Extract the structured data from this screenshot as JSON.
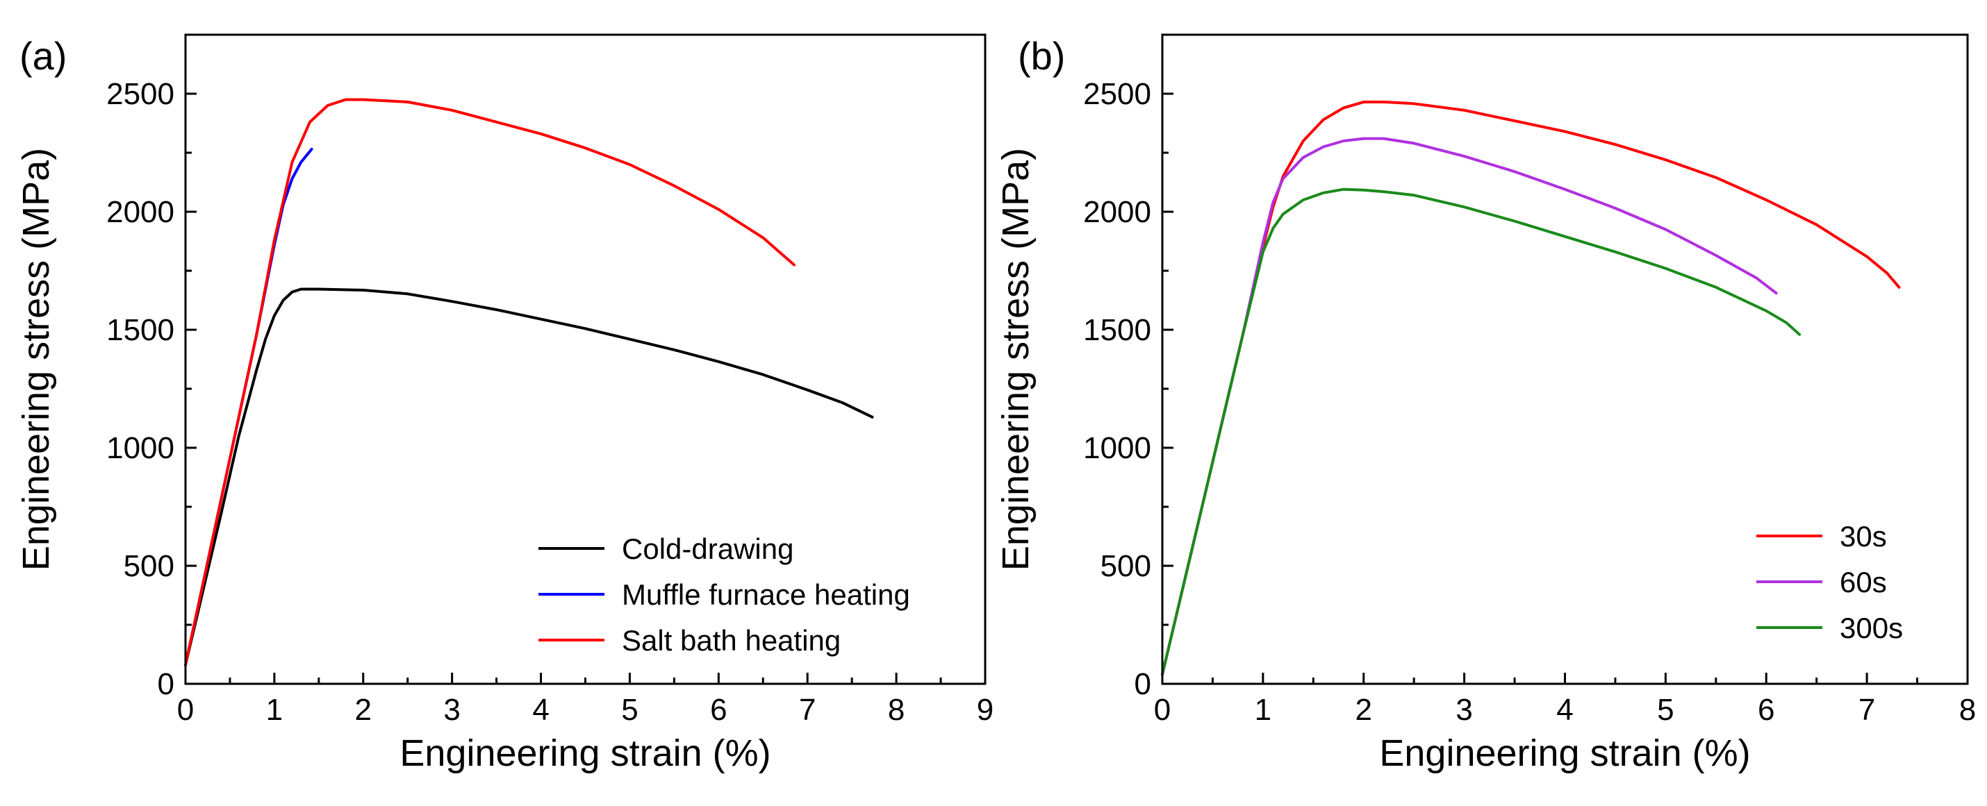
{
  "chart_data": [
    {
      "type": "line",
      "panel_label": "(a)",
      "xlabel": "Engineering strain (%)",
      "ylabel": "Engineering stress (MPa)",
      "xlim": [
        0,
        9
      ],
      "ylim": [
        0,
        2750
      ],
      "xticks": [
        0,
        1,
        2,
        3,
        4,
        5,
        6,
        7,
        8,
        9
      ],
      "yticks": [
        0,
        500,
        1000,
        1500,
        2000,
        2500
      ],
      "legend_position": "bottom-right",
      "series": [
        {
          "name": "Cold-drawing",
          "color": "#000000",
          "x": [
            0.0,
            0.2,
            0.4,
            0.6,
            0.8,
            0.9,
            1.0,
            1.1,
            1.2,
            1.3,
            1.5,
            2.0,
            2.5,
            3.0,
            3.5,
            4.0,
            4.5,
            5.0,
            5.5,
            6.0,
            6.5,
            7.0,
            7.4,
            7.73
          ],
          "y": [
            80,
            400,
            720,
            1050,
            1330,
            1460,
            1560,
            1625,
            1660,
            1672,
            1672,
            1668,
            1652,
            1620,
            1585,
            1545,
            1505,
            1460,
            1415,
            1365,
            1310,
            1245,
            1190,
            1130
          ]
        },
        {
          "name": "Muffle furnace heating",
          "color": "#0000ff",
          "x": [
            0.0,
            0.2,
            0.4,
            0.6,
            0.8,
            1.0,
            1.1,
            1.2,
            1.3,
            1.42
          ],
          "y": [
            80,
            430,
            780,
            1130,
            1480,
            1860,
            2030,
            2140,
            2210,
            2265
          ]
        },
        {
          "name": "Salt bath heating",
          "color": "#ff0000",
          "x": [
            0.0,
            0.2,
            0.4,
            0.6,
            0.8,
            1.0,
            1.2,
            1.4,
            1.6,
            1.8,
            2.0,
            2.5,
            3.0,
            3.5,
            4.0,
            4.5,
            5.0,
            5.5,
            6.0,
            6.5,
            6.85
          ],
          "y": [
            80,
            430,
            780,
            1130,
            1480,
            1880,
            2210,
            2380,
            2450,
            2475,
            2475,
            2465,
            2430,
            2380,
            2330,
            2270,
            2200,
            2110,
            2010,
            1890,
            1775
          ]
        }
      ]
    },
    {
      "type": "line",
      "panel_label": "(b)",
      "xlabel": "Engineering strain (%)",
      "ylabel": "Engineering stress (MPa)",
      "xlim": [
        0,
        8
      ],
      "ylim": [
        0,
        2750
      ],
      "xticks": [
        0,
        1,
        2,
        3,
        4,
        5,
        6,
        7,
        8
      ],
      "yticks": [
        0,
        500,
        1000,
        1500,
        2000,
        2500
      ],
      "legend_position": "bottom-right",
      "series": [
        {
          "name": "30s",
          "color": "#ff0000",
          "x": [
            0.0,
            0.2,
            0.4,
            0.6,
            0.8,
            1.0,
            1.1,
            1.2,
            1.4,
            1.6,
            1.8,
            2.0,
            2.2,
            2.5,
            3.0,
            3.5,
            4.0,
            4.5,
            5.0,
            5.5,
            6.0,
            6.5,
            7.0,
            7.2,
            7.32
          ],
          "y": [
            40,
            400,
            760,
            1120,
            1480,
            1850,
            2020,
            2150,
            2300,
            2390,
            2440,
            2465,
            2465,
            2458,
            2430,
            2385,
            2340,
            2285,
            2220,
            2145,
            2050,
            1945,
            1810,
            1740,
            1680
          ]
        },
        {
          "name": "60s",
          "color": "#b030e0",
          "x": [
            0.0,
            0.2,
            0.4,
            0.6,
            0.8,
            1.0,
            1.1,
            1.2,
            1.4,
            1.6,
            1.8,
            2.0,
            2.2,
            2.5,
            3.0,
            3.5,
            4.0,
            4.5,
            5.0,
            5.5,
            5.9,
            6.1
          ],
          "y": [
            40,
            400,
            760,
            1120,
            1480,
            1870,
            2040,
            2140,
            2230,
            2275,
            2300,
            2310,
            2310,
            2290,
            2235,
            2170,
            2095,
            2015,
            1925,
            1815,
            1720,
            1655
          ]
        },
        {
          "name": "300s",
          "color": "#1a8a1a",
          "x": [
            0.0,
            0.2,
            0.4,
            0.6,
            0.8,
            1.0,
            1.1,
            1.2,
            1.4,
            1.6,
            1.8,
            2.0,
            2.2,
            2.5,
            3.0,
            3.5,
            4.0,
            4.5,
            5.0,
            5.5,
            6.0,
            6.2,
            6.33
          ],
          "y": [
            40,
            400,
            760,
            1120,
            1480,
            1830,
            1930,
            1990,
            2050,
            2080,
            2095,
            2092,
            2085,
            2070,
            2020,
            1960,
            1895,
            1830,
            1760,
            1680,
            1580,
            1530,
            1480
          ]
        }
      ]
    }
  ]
}
